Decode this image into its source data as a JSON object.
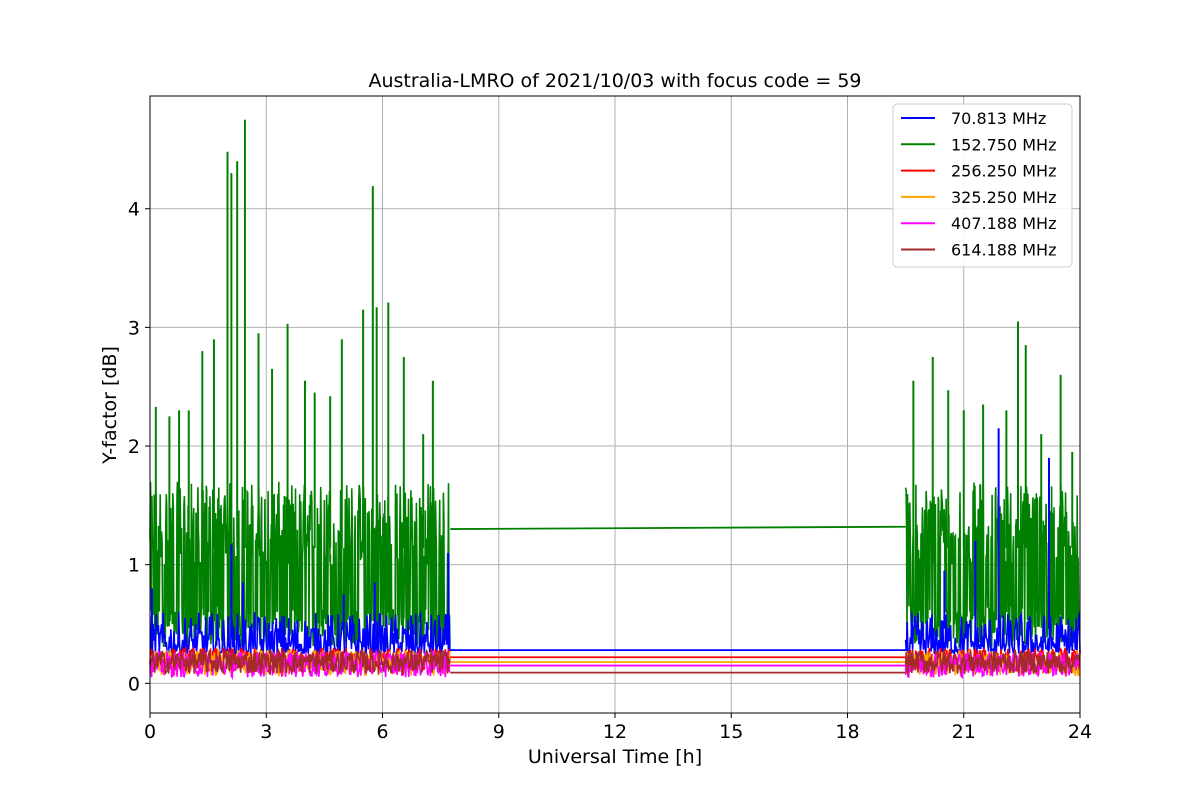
{
  "chart_data": {
    "type": "line",
    "title": "Australia-LMRO of 2021/10/03 with focus code = 59",
    "xlabel": "Universal Time [h]",
    "ylabel": "Y-factor [dB]",
    "xlim": [
      0,
      24
    ],
    "ylim": [
      -0.25,
      4.95
    ],
    "xticks": [
      0,
      3,
      6,
      9,
      12,
      15,
      18,
      21,
      24
    ],
    "yticks": [
      0,
      1,
      2,
      3,
      4
    ],
    "grid": true,
    "legend_position": "top-right",
    "data_gap_hours": [
      7.75,
      19.5
    ],
    "series": [
      {
        "name": "  70.813 MHz",
        "color": "#0000ff",
        "typical_range": [
          0.25,
          0.6
        ],
        "gap_level": [
          0.28,
          0.28
        ],
        "peaks": [
          [
            0.05,
            0.8
          ],
          [
            2.1,
            1.17
          ],
          [
            2.4,
            0.85
          ],
          [
            5.0,
            0.75
          ],
          [
            5.8,
            0.85
          ],
          [
            7.7,
            1.1
          ],
          [
            20.5,
            0.95
          ],
          [
            21.3,
            1.2
          ],
          [
            21.9,
            2.15
          ],
          [
            23.2,
            1.9
          ]
        ]
      },
      {
        "name": "152.750 MHz",
        "color": "#008000",
        "typical_range": [
          0.3,
          1.7
        ],
        "gap_level": [
          1.3,
          1.32
        ],
        "peaks": [
          [
            0.15,
            2.33
          ],
          [
            0.5,
            2.25
          ],
          [
            0.75,
            2.3
          ],
          [
            1.0,
            2.3
          ],
          [
            1.35,
            2.8
          ],
          [
            1.65,
            2.9
          ],
          [
            2.0,
            4.48
          ],
          [
            2.1,
            4.3
          ],
          [
            2.25,
            4.4
          ],
          [
            2.45,
            4.75
          ],
          [
            2.8,
            2.95
          ],
          [
            3.15,
            2.65
          ],
          [
            3.55,
            3.03
          ],
          [
            4.0,
            2.55
          ],
          [
            4.25,
            2.45
          ],
          [
            4.65,
            2.42
          ],
          [
            4.95,
            2.9
          ],
          [
            5.5,
            3.15
          ],
          [
            5.75,
            4.19
          ],
          [
            5.85,
            3.17
          ],
          [
            6.15,
            3.21
          ],
          [
            6.55,
            2.75
          ],
          [
            7.05,
            2.1
          ],
          [
            7.3,
            2.55
          ],
          [
            19.7,
            2.55
          ],
          [
            20.2,
            2.75
          ],
          [
            20.6,
            2.47
          ],
          [
            21.0,
            2.3
          ],
          [
            21.5,
            2.35
          ],
          [
            22.1,
            2.3
          ],
          [
            22.4,
            3.05
          ],
          [
            22.6,
            2.85
          ],
          [
            23.0,
            2.1
          ],
          [
            23.5,
            2.6
          ],
          [
            23.8,
            1.95
          ]
        ]
      },
      {
        "name": "256.250 MHz",
        "color": "#ff0000",
        "typical_range": [
          0.1,
          0.3
        ],
        "gap_level": [
          0.22,
          0.22
        ]
      },
      {
        "name": "325.250 MHz",
        "color": "#ffa500",
        "typical_range": [
          0.06,
          0.28
        ],
        "gap_level": [
          0.18,
          0.18
        ]
      },
      {
        "name": "407.188 MHz",
        "color": "#ff00ff",
        "typical_range": [
          0.05,
          0.27
        ],
        "gap_level": [
          0.15,
          0.15
        ]
      },
      {
        "name": "614.188 MHz",
        "color": "#a52a2a",
        "typical_range": [
          0.08,
          0.28
        ],
        "gap_level": [
          0.09,
          0.09
        ]
      }
    ]
  }
}
